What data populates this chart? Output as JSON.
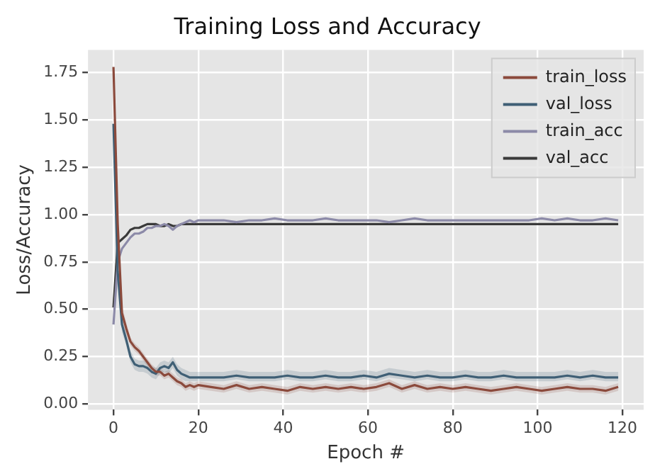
{
  "chart_data": {
    "type": "line",
    "title": "Training Loss and Accuracy",
    "xlabel": "Epoch #",
    "ylabel": "Loss/Accuracy",
    "x": [
      0,
      1,
      2,
      3,
      4,
      5,
      6,
      7,
      8,
      9,
      10,
      11,
      12,
      13,
      14,
      15,
      16,
      17,
      18,
      19,
      20,
      23,
      26,
      29,
      32,
      35,
      38,
      41,
      44,
      47,
      50,
      53,
      56,
      59,
      62,
      65,
      68,
      71,
      74,
      77,
      80,
      83,
      86,
      89,
      92,
      95,
      98,
      101,
      104,
      107,
      110,
      113,
      116,
      119
    ],
    "series": [
      {
        "name": "train_loss",
        "color": "#8b4a3c",
        "values": [
          1.78,
          0.95,
          0.48,
          0.4,
          0.33,
          0.3,
          0.28,
          0.25,
          0.22,
          0.19,
          0.17,
          0.17,
          0.15,
          0.16,
          0.14,
          0.12,
          0.11,
          0.09,
          0.1,
          0.09,
          0.1,
          0.09,
          0.08,
          0.1,
          0.08,
          0.09,
          0.08,
          0.07,
          0.09,
          0.08,
          0.09,
          0.08,
          0.09,
          0.08,
          0.09,
          0.11,
          0.08,
          0.1,
          0.08,
          0.09,
          0.08,
          0.09,
          0.08,
          0.07,
          0.08,
          0.09,
          0.08,
          0.07,
          0.08,
          0.09,
          0.08,
          0.08,
          0.07,
          0.09
        ],
        "lower": [
          1.6,
          0.85,
          0.44,
          0.37,
          0.31,
          0.28,
          0.26,
          0.23,
          0.2,
          0.17,
          0.15,
          0.15,
          0.13,
          0.14,
          0.12,
          0.1,
          0.09,
          0.07,
          0.08,
          0.07,
          0.08,
          0.07,
          0.06,
          0.08,
          0.06,
          0.07,
          0.06,
          0.05,
          0.07,
          0.06,
          0.07,
          0.06,
          0.07,
          0.06,
          0.07,
          0.09,
          0.06,
          0.08,
          0.06,
          0.07,
          0.06,
          0.07,
          0.06,
          0.05,
          0.06,
          0.07,
          0.06,
          0.05,
          0.06,
          0.07,
          0.06,
          0.06,
          0.05,
          0.07
        ],
        "upper": [
          1.78,
          1.05,
          0.52,
          0.43,
          0.35,
          0.32,
          0.3,
          0.27,
          0.24,
          0.21,
          0.19,
          0.19,
          0.17,
          0.18,
          0.16,
          0.14,
          0.13,
          0.11,
          0.12,
          0.11,
          0.12,
          0.11,
          0.1,
          0.12,
          0.1,
          0.11,
          0.1,
          0.09,
          0.11,
          0.1,
          0.11,
          0.1,
          0.11,
          0.1,
          0.11,
          0.13,
          0.1,
          0.12,
          0.1,
          0.11,
          0.1,
          0.11,
          0.1,
          0.09,
          0.1,
          0.11,
          0.1,
          0.09,
          0.1,
          0.11,
          0.1,
          0.1,
          0.09,
          0.11
        ]
      },
      {
        "name": "val_loss",
        "color": "#3f5f75",
        "values": [
          1.48,
          0.7,
          0.42,
          0.34,
          0.25,
          0.21,
          0.2,
          0.2,
          0.19,
          0.17,
          0.16,
          0.19,
          0.2,
          0.19,
          0.22,
          0.18,
          0.16,
          0.15,
          0.14,
          0.14,
          0.14,
          0.14,
          0.14,
          0.15,
          0.14,
          0.14,
          0.14,
          0.15,
          0.14,
          0.14,
          0.15,
          0.14,
          0.14,
          0.15,
          0.14,
          0.16,
          0.15,
          0.14,
          0.15,
          0.14,
          0.14,
          0.15,
          0.14,
          0.14,
          0.15,
          0.14,
          0.14,
          0.14,
          0.14,
          0.15,
          0.14,
          0.15,
          0.14,
          0.14
        ],
        "lower": [
          1.4,
          0.64,
          0.38,
          0.31,
          0.22,
          0.18,
          0.17,
          0.17,
          0.16,
          0.14,
          0.13,
          0.16,
          0.17,
          0.16,
          0.19,
          0.15,
          0.13,
          0.12,
          0.12,
          0.12,
          0.12,
          0.12,
          0.12,
          0.13,
          0.12,
          0.12,
          0.12,
          0.13,
          0.12,
          0.12,
          0.13,
          0.12,
          0.12,
          0.13,
          0.12,
          0.14,
          0.13,
          0.12,
          0.13,
          0.12,
          0.12,
          0.13,
          0.12,
          0.12,
          0.13,
          0.12,
          0.12,
          0.12,
          0.12,
          0.13,
          0.12,
          0.13,
          0.12,
          0.12
        ],
        "upper": [
          1.48,
          0.76,
          0.46,
          0.37,
          0.28,
          0.24,
          0.23,
          0.23,
          0.22,
          0.2,
          0.19,
          0.22,
          0.23,
          0.22,
          0.25,
          0.21,
          0.19,
          0.18,
          0.17,
          0.17,
          0.17,
          0.17,
          0.17,
          0.18,
          0.17,
          0.17,
          0.17,
          0.18,
          0.17,
          0.17,
          0.18,
          0.17,
          0.17,
          0.18,
          0.17,
          0.19,
          0.18,
          0.17,
          0.18,
          0.17,
          0.17,
          0.18,
          0.17,
          0.17,
          0.18,
          0.17,
          0.17,
          0.17,
          0.17,
          0.18,
          0.17,
          0.18,
          0.17,
          0.17
        ]
      },
      {
        "name": "train_acc",
        "color": "#8c8aa8",
        "values": [
          0.42,
          0.75,
          0.82,
          0.85,
          0.88,
          0.9,
          0.9,
          0.91,
          0.93,
          0.93,
          0.94,
          0.94,
          0.95,
          0.94,
          0.92,
          0.94,
          0.95,
          0.96,
          0.97,
          0.96,
          0.97,
          0.97,
          0.97,
          0.96,
          0.97,
          0.97,
          0.98,
          0.97,
          0.97,
          0.97,
          0.98,
          0.97,
          0.97,
          0.97,
          0.97,
          0.96,
          0.97,
          0.98,
          0.97,
          0.97,
          0.97,
          0.97,
          0.97,
          0.97,
          0.97,
          0.97,
          0.97,
          0.98,
          0.97,
          0.98,
          0.97,
          0.97,
          0.98,
          0.97
        ]
      },
      {
        "name": "val_acc",
        "color": "#3a3a3a",
        "values": [
          0.51,
          0.85,
          0.87,
          0.89,
          0.92,
          0.93,
          0.93,
          0.94,
          0.95,
          0.95,
          0.95,
          0.94,
          0.94,
          0.95,
          0.94,
          0.94,
          0.95,
          0.95,
          0.95,
          0.95,
          0.95,
          0.95,
          0.95,
          0.95,
          0.95,
          0.95,
          0.95,
          0.95,
          0.95,
          0.95,
          0.95,
          0.95,
          0.95,
          0.95,
          0.95,
          0.95,
          0.95,
          0.95,
          0.95,
          0.95,
          0.95,
          0.95,
          0.95,
          0.95,
          0.95,
          0.95,
          0.95,
          0.95,
          0.95,
          0.95,
          0.95,
          0.95,
          0.95,
          0.95
        ]
      }
    ],
    "xlim": [
      -6,
      125
    ],
    "xticks": [
      0,
      20,
      40,
      60,
      80,
      100,
      120
    ],
    "ylim": [
      -0.03,
      1.87
    ],
    "yticks": [
      {
        "value": 0,
        "label": "0.00"
      },
      {
        "value": 0.25,
        "label": "0.25"
      },
      {
        "value": 0.5,
        "label": "0.50"
      },
      {
        "value": 0.75,
        "label": "0.75"
      },
      {
        "value": 1,
        "label": "1.00"
      },
      {
        "value": 1.25,
        "label": "1.25"
      },
      {
        "value": 1.5,
        "label": "1.50"
      },
      {
        "value": 1.75,
        "label": "1.75"
      }
    ],
    "grid": true,
    "legend": "top right",
    "marker": "none",
    "line_style": "solid"
  }
}
